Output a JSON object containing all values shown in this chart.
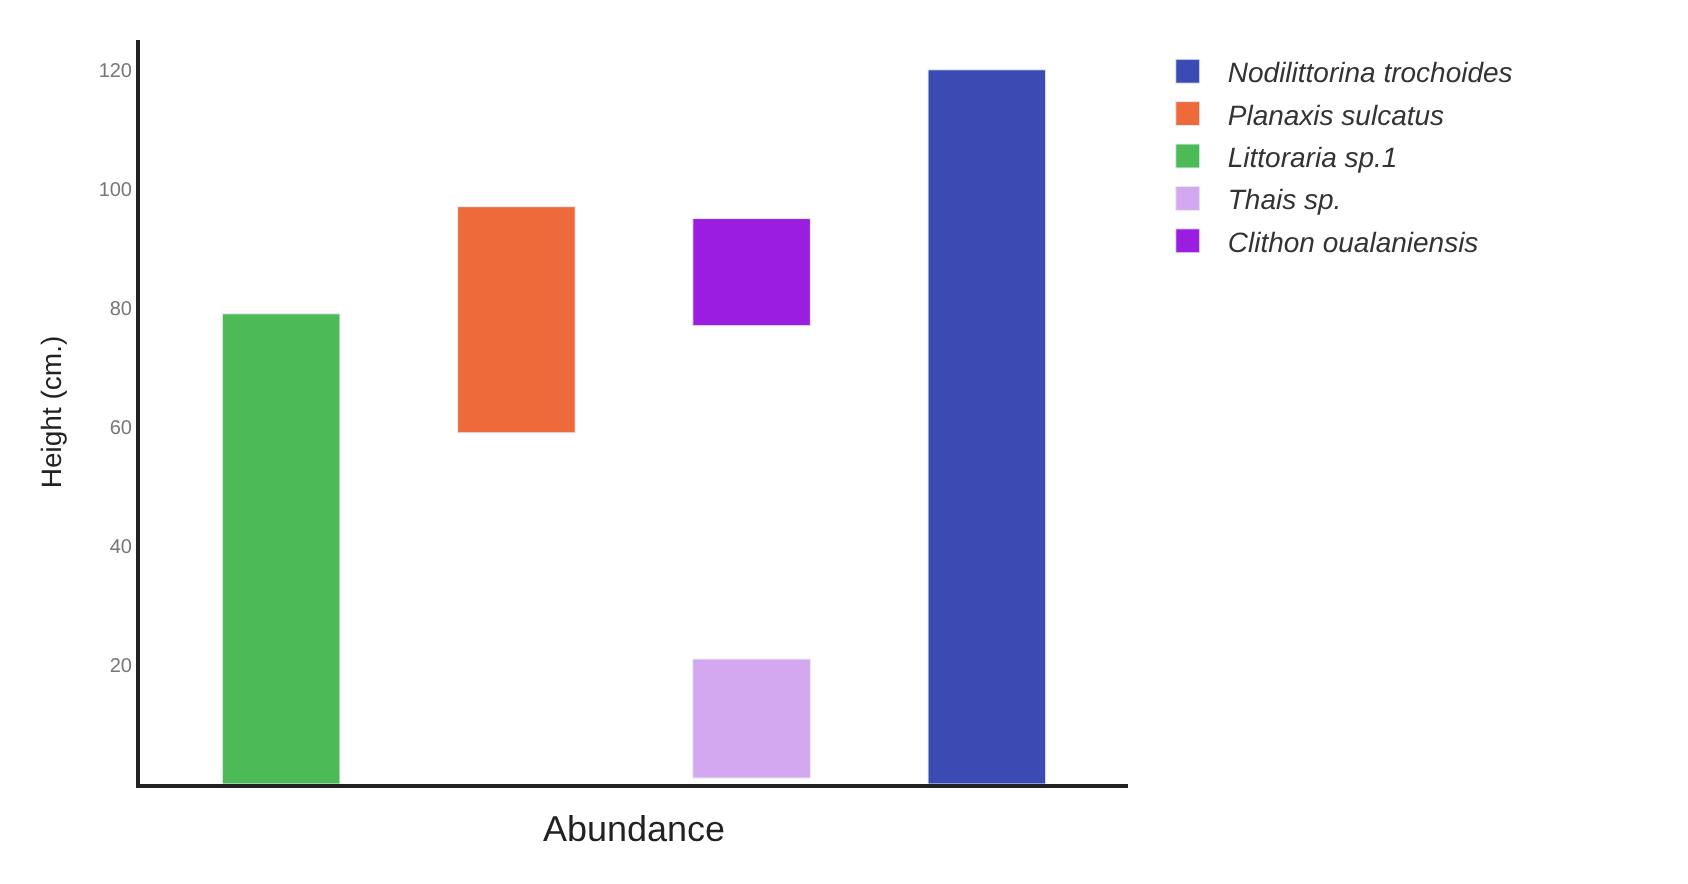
{
  "chart_data": {
    "type": "bar",
    "xlabel": "Abundance",
    "ylabel": "Height (cm.)",
    "categories": [
      null,
      null,
      null,
      null
    ],
    "ylim": [
      0,
      125
    ],
    "yticks": [
      20,
      40,
      60,
      80,
      100,
      120
    ],
    "legend": "top right",
    "tick_labels": "y",
    "series": [
      {
        "name": "Nodilittorina trochoides",
        "color": "#3b4bb3",
        "values": [
          null,
          null,
          null,
          120
        ],
        "base": [
          null,
          null,
          null,
          0
        ]
      },
      {
        "name": "Planaxis sulcatus",
        "color": "#ee6a3a",
        "values": [
          null,
          38,
          null,
          null
        ],
        "base": [
          null,
          59,
          null,
          null
        ]
      },
      {
        "name": "Littoraria sp.1",
        "color": "#4cbb55",
        "values": [
          79,
          null,
          null,
          null
        ],
        "base": [
          0,
          null,
          null,
          null
        ]
      },
      {
        "name": "Thais sp.",
        "color": "#d4a8f0",
        "values": [
          null,
          null,
          20,
          null
        ],
        "base": [
          null,
          null,
          1,
          null
        ]
      },
      {
        "name": "Clithon oualaniensis",
        "color": "#9b1ee0",
        "values": [
          null,
          null,
          18,
          null
        ],
        "base": [
          null,
          null,
          77,
          null
        ]
      }
    ]
  }
}
